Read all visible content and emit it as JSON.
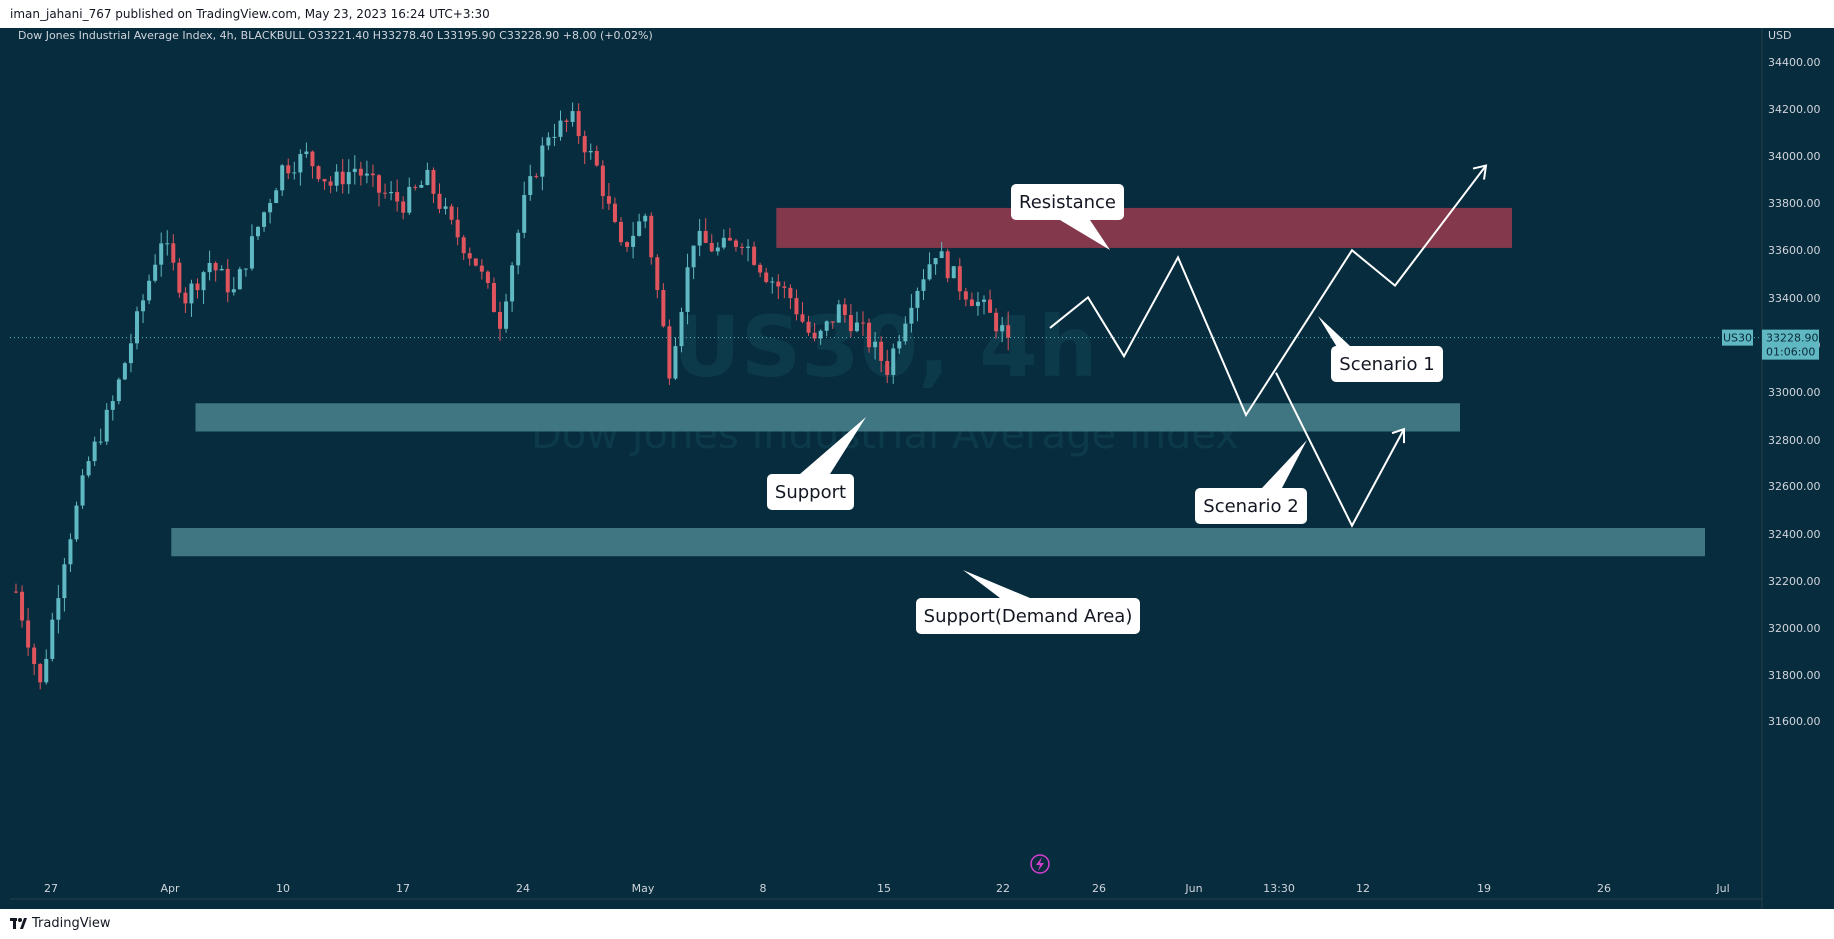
{
  "header": {
    "publish_line": "iman_jahani_767 published on TradingView.com, May 23, 2023 16:24 UTC+3:30"
  },
  "footer": {
    "brand": "TradingView"
  },
  "colors": {
    "chart_bg": "#062c3d",
    "bull": "#5fb8c2",
    "bear": "#e0545e",
    "resistance_zone": "#8a3a4c",
    "support_zone": "#427a85",
    "callout_bg": "#ffffff",
    "annotation_line": "#ffffff"
  },
  "chart_data": {
    "type": "candlestick",
    "symbol_line": "Dow Jones Industrial Average Index, 4h, BLACKBULL",
    "ohlc": {
      "open": "O33221.40",
      "high": "H33278.40",
      "low": "L33195.90",
      "close": "C33228.90",
      "change": "+8.00 (+0.02%)"
    },
    "currency": "USD",
    "watermark_symbol": "US30, 4h",
    "watermark_name": "Dow Jones Industrial Average Index",
    "y_ticks": [
      "34400.00",
      "34200.00",
      "34000.00",
      "33800.00",
      "33600.00",
      "33400.00",
      "33200.00",
      "33000.00",
      "32800.00",
      "32600.00",
      "32400.00",
      "32200.00",
      "32000.00",
      "31800.00",
      "31600.00"
    ],
    "y_range": [
      31500,
      34550
    ],
    "x_ticks": [
      "27",
      "Apr",
      "10",
      "17",
      "24",
      "May",
      "8",
      "15",
      "22",
      "26",
      "Jun",
      "13:30",
      "12",
      "19",
      "26",
      "Jul"
    ],
    "last_price": {
      "ticker": "US30",
      "price": "33228.90",
      "countdown": "01:06:00",
      "value": 33228.9
    },
    "price_path": [
      [
        0,
        32150
      ],
      [
        4,
        31750
      ],
      [
        8,
        32300
      ],
      [
        12,
        32700
      ],
      [
        16,
        32950
      ],
      [
        20,
        33300
      ],
      [
        24,
        33650
      ],
      [
        28,
        33400
      ],
      [
        32,
        33550
      ],
      [
        36,
        33420
      ],
      [
        40,
        33700
      ],
      [
        44,
        33950
      ],
      [
        48,
        34000
      ],
      [
        52,
        33880
      ],
      [
        56,
        33950
      ],
      [
        60,
        33850
      ],
      [
        64,
        33800
      ],
      [
        68,
        33900
      ],
      [
        72,
        33700
      ],
      [
        76,
        33550
      ],
      [
        80,
        33300
      ],
      [
        84,
        33800
      ],
      [
        88,
        34100
      ],
      [
        92,
        34150
      ],
      [
        96,
        33950
      ],
      [
        100,
        33600
      ],
      [
        104,
        33750
      ],
      [
        108,
        33100
      ],
      [
        112,
        33650
      ],
      [
        116,
        33600
      ],
      [
        120,
        33650
      ],
      [
        124,
        33500
      ],
      [
        128,
        33400
      ],
      [
        132,
        33200
      ],
      [
        136,
        33350
      ],
      [
        140,
        33250
      ],
      [
        144,
        33100
      ],
      [
        148,
        33400
      ],
      [
        152,
        33600
      ],
      [
        156,
        33450
      ],
      [
        160,
        33350
      ],
      [
        164,
        33228
      ]
    ],
    "zones": [
      {
        "name": "Resistance",
        "from_bar": 126,
        "to_date_pos": 1512,
        "low": 33610,
        "high": 33780
      },
      {
        "name": "Support",
        "from_bar": 30,
        "to_date_pos": 1460,
        "low": 32830,
        "high": 32950
      },
      {
        "name": "Support(Demand Area)",
        "from_bar": 26,
        "to_date_pos": 1705,
        "low": 32300,
        "high": 32420
      }
    ],
    "annotations": [
      {
        "label": "Resistance"
      },
      {
        "label": "Support"
      },
      {
        "label": "Support(Demand Area)"
      },
      {
        "label": "Scenario 1"
      },
      {
        "label": "Scenario 2"
      }
    ]
  }
}
